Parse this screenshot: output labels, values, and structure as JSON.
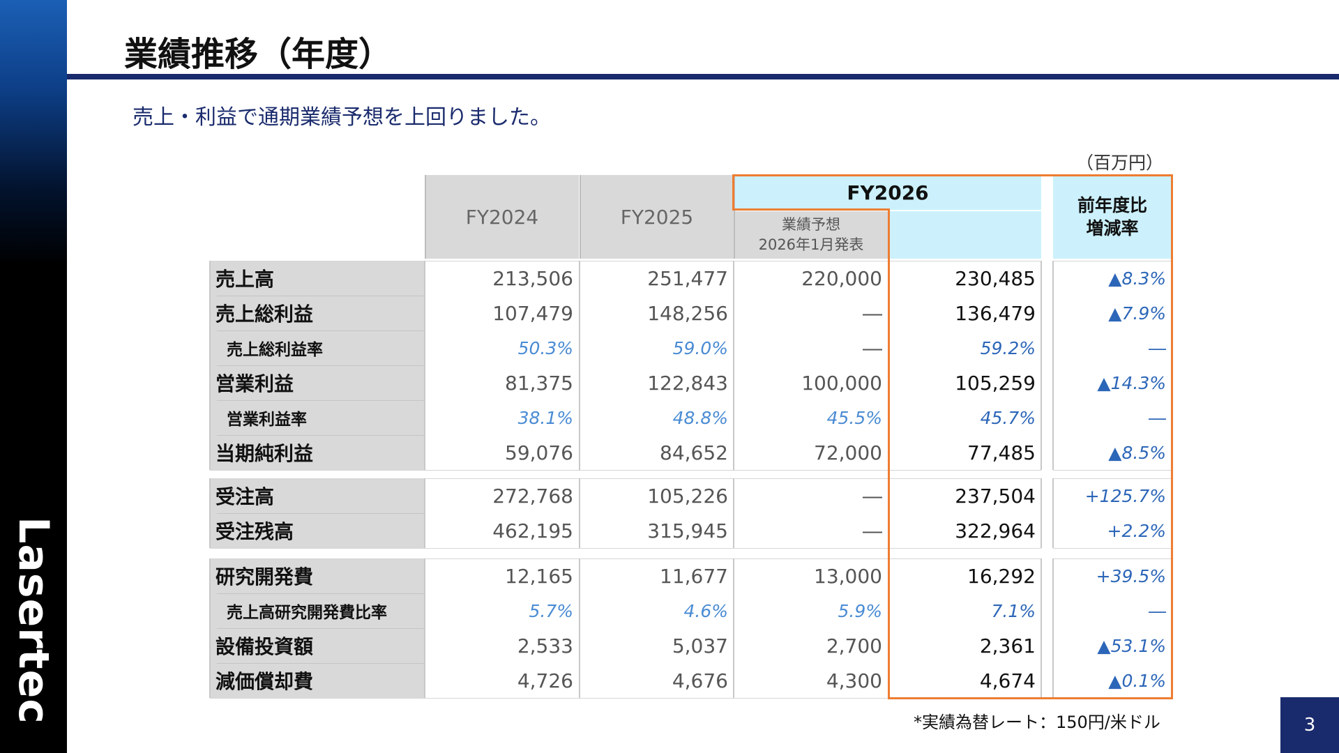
{
  "brand": "Lasertec",
  "title": "業績推移（年度）",
  "subtitle": "売上・利益で通期業績予想を上回りました。",
  "unit_note": "（百万円）",
  "footnote": "*実績為替レート：150円/米ドル",
  "page_number": "3",
  "colors": {
    "accent_navy": "#1a2b6d",
    "highlight_orange": "#ed7d31",
    "header_cyan": "#ccf1fd",
    "label_gray": "#d9d9d9"
  },
  "table": {
    "headers": {
      "fy2024": "FY2024",
      "fy2025": "FY2025",
      "fy2026": "FY2026",
      "forecast_line1": "業績予想",
      "forecast_line2": "2026年1月発表",
      "yoy_line1": "前年度比",
      "yoy_line2": "増減率"
    },
    "rows": [
      {
        "label": "売上高",
        "fy2024": "213,506",
        "fy2025": "251,477",
        "forecast": "220,000",
        "fy2026": "230,485",
        "yoy": "▲8.3%"
      },
      {
        "label": "売上総利益",
        "fy2024": "107,479",
        "fy2025": "148,256",
        "forecast": "―",
        "fy2026": "136,479",
        "yoy": "▲7.9%"
      },
      {
        "label": "売上総利益率",
        "fy2024": "50.3%",
        "fy2025": "59.0%",
        "forecast": "―",
        "fy2026": "59.2%",
        "yoy": "―"
      },
      {
        "label": "営業利益",
        "fy2024": "81,375",
        "fy2025": "122,843",
        "forecast": "100,000",
        "fy2026": "105,259",
        "yoy": "▲14.3%"
      },
      {
        "label": "営業利益率",
        "fy2024": "38.1%",
        "fy2025": "48.8%",
        "forecast": "45.5%",
        "fy2026": "45.7%",
        "yoy": "―"
      },
      {
        "label": "当期純利益",
        "fy2024": "59,076",
        "fy2025": "84,652",
        "forecast": "72,000",
        "fy2026": "77,485",
        "yoy": "▲8.5%"
      },
      {
        "label": "受注高",
        "fy2024": "272,768",
        "fy2025": "105,226",
        "forecast": "―",
        "fy2026": "237,504",
        "yoy": "+125.7%"
      },
      {
        "label": "受注残高",
        "fy2024": "462,195",
        "fy2025": "315,945",
        "forecast": "―",
        "fy2026": "322,964",
        "yoy": "+2.2%"
      },
      {
        "label": "研究開発費",
        "fy2024": "12,165",
        "fy2025": "11,677",
        "forecast": "13,000",
        "fy2026": "16,292",
        "yoy": "+39.5%"
      },
      {
        "label": "売上高研究開発費比率",
        "fy2024": "5.7%",
        "fy2025": "4.6%",
        "forecast": "5.9%",
        "fy2026": "7.1%",
        "yoy": "―"
      },
      {
        "label": "設備投資額",
        "fy2024": "2,533",
        "fy2025": "5,037",
        "forecast": "2,700",
        "fy2026": "2,361",
        "yoy": "▲53.1%"
      },
      {
        "label": "減価償却費",
        "fy2024": "4,726",
        "fy2025": "4,676",
        "forecast": "4,300",
        "fy2026": "4,674",
        "yoy": "▲0.1%"
      }
    ]
  }
}
